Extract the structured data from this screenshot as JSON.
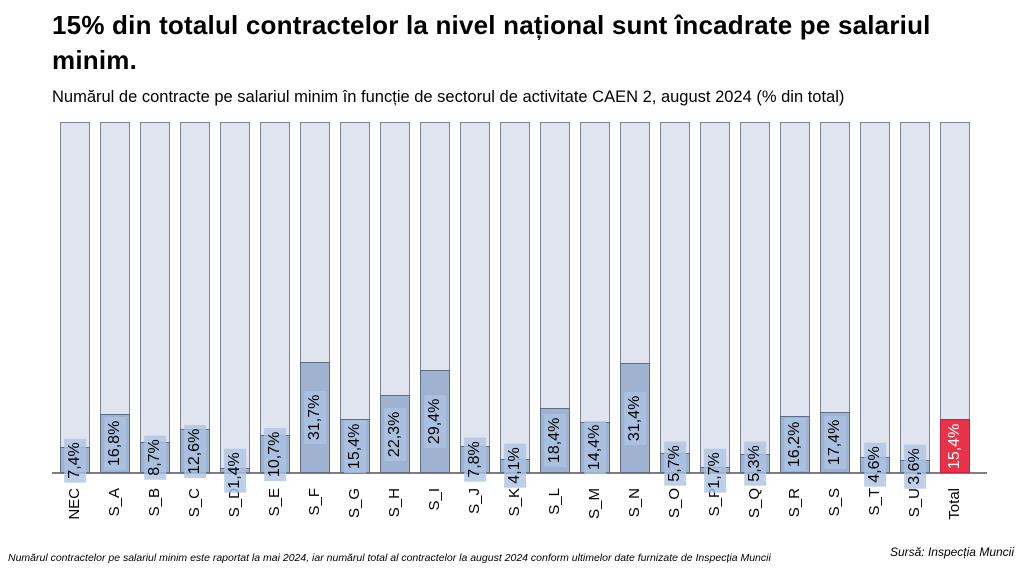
{
  "header": {
    "title": "15% din totalul contractelor la nivel național sunt încadrate pe salariul minim.",
    "subtitle": "Numărul de contracte pe salariul minim în funcție de sectorul de activitate CAEN 2, august 2024 (% din total)"
  },
  "chart_data": {
    "type": "bar",
    "title": "15% din totalul contractelor la nivel național sunt încadrate pe salariul minim.",
    "subtitle": "Numărul de contracte pe salariul minim în funcție de sectorul de activitate CAEN 2, august 2024 (% din total)",
    "xlabel": "",
    "ylabel": "",
    "ylim": [
      0,
      100
    ],
    "grid": false,
    "legend": false,
    "orientation": "vertical",
    "note": "each category drawn as a full-height 100% background bar with a filled portion equal to the value",
    "categories": [
      "NEC",
      "S_A",
      "S_B",
      "S_C",
      "S_D",
      "S_E",
      "S_F",
      "S_G",
      "S_H",
      "S_I",
      "S_J",
      "S_K",
      "S_L",
      "S_M",
      "S_N",
      "S_O",
      "S_P",
      "S_Q",
      "S_R",
      "S_S",
      "S_T",
      "S_U",
      "Total"
    ],
    "values": [
      7.4,
      16.8,
      8.7,
      12.6,
      1.4,
      10.7,
      31.7,
      15.4,
      22.3,
      29.4,
      7.8,
      4.1,
      18.4,
      14.4,
      31.4,
      5.7,
      1.7,
      5.3,
      16.2,
      17.4,
      4.6,
      3.6,
      15.4
    ],
    "value_labels": [
      "7,4%",
      "16,8%",
      "8,7%",
      "12,6%",
      "1,4%",
      "10,7%",
      "31,7%",
      "15,4%",
      "22,3%",
      "29,4%",
      "7,8%",
      "4,1%",
      "18,4%",
      "14,4%",
      "31,4%",
      "5,7%",
      "1,7%",
      "5,3%",
      "16,2%",
      "17,4%",
      "4,6%",
      "3,6%",
      "15,4%"
    ],
    "highlight_category": "Total",
    "colors": {
      "fill": "#9fb3d1",
      "fill_border": "#5f6d83",
      "bar_background": "#e0e4ee",
      "bar_background_border": "#7d8595",
      "total_fill": "#e73249",
      "value_label_background": "#adc3e3",
      "total_value_text": "#ffffff",
      "axis": "#7f7f7f"
    }
  },
  "footer": {
    "note": "Numărul contractelor pe salariul minim este raportat la mai 2024, iar numărul total al contractelor la august 2024 conform ultimelor date furnizate de Inspecția Muncii",
    "source": "Sursă: Inspecția Muncii"
  }
}
